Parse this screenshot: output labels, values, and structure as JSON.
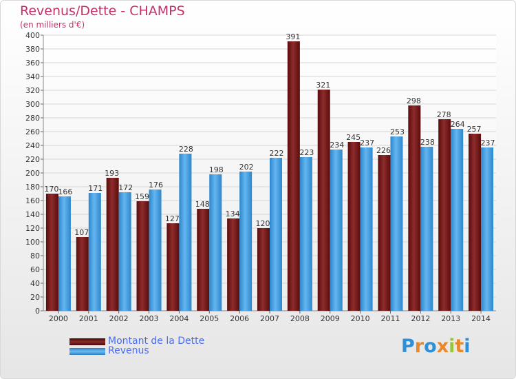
{
  "header": {
    "title": "Revenus/Dette - CHAMPS",
    "subtitle": "(en milliers d'€)"
  },
  "colors": {
    "dette": "#7a1616",
    "revenus": "#3d9be0",
    "title": "#c4306a",
    "legend_text": "#4a6cf0"
  },
  "legend": {
    "dette_label": "Montant de la Dette",
    "revenus_label": "Revenus"
  },
  "logo": {
    "letters": [
      "P",
      "r",
      "o",
      "x",
      "i",
      "t",
      "i"
    ],
    "colors": [
      "#2e8fd6",
      "#e9882a",
      "#2e8fd6",
      "#e9882a",
      "#9ac43a",
      "#e9882a",
      "#2e8fd6"
    ]
  },
  "chart_data": {
    "type": "bar",
    "categories": [
      "2000",
      "2001",
      "2002",
      "2003",
      "2004",
      "2005",
      "2006",
      "2007",
      "2008",
      "2009",
      "2010",
      "2011",
      "2012",
      "2013",
      "2014"
    ],
    "series": [
      {
        "name": "Montant de la Dette",
        "values": [
          170,
          107,
          193,
          159,
          127,
          148,
          134,
          120,
          391,
          321,
          245,
          226,
          298,
          278,
          257
        ]
      },
      {
        "name": "Revenus",
        "values": [
          166,
          171,
          172,
          176,
          228,
          198,
          202,
          222,
          223,
          234,
          237,
          253,
          238,
          264,
          237
        ]
      }
    ],
    "ylim": [
      0,
      400
    ],
    "yticks": [
      0,
      20,
      40,
      60,
      80,
      100,
      120,
      140,
      160,
      180,
      200,
      220,
      240,
      260,
      280,
      300,
      320,
      340,
      360,
      380,
      400
    ],
    "grid": true,
    "legend_position": "bottom-left"
  }
}
